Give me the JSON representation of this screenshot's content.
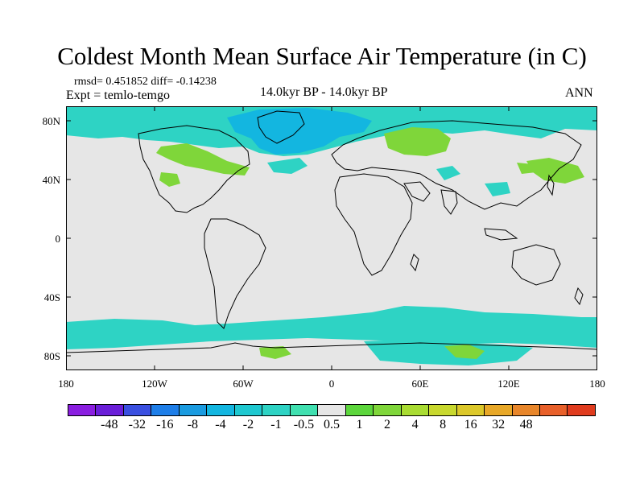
{
  "title": "Coldest Month Mean Surface Air Temperature (in C)",
  "stats": "rmsd= 0.451852 diff= -0.14238",
  "experiment": "Expt = temlo-temgo",
  "period": "14.0kyr BP - 14.0kyr BP",
  "season": "ANN",
  "colors": {
    "land_neutral": "#e6e6e6",
    "cool_1": "#2ed3c4",
    "cool_2": "#13b6e0",
    "cool_3": "#1aa0d8",
    "warm_1": "#7fd63a",
    "warm_2": "#a9dc32"
  },
  "map_data": {
    "lon_range": [
      -180,
      180
    ],
    "lat_range": [
      -90,
      90
    ],
    "lat_ticks": [
      "80N",
      "40N",
      "0",
      "40S",
      "80S"
    ],
    "lon_ticks": [
      "180",
      "120W",
      "60W",
      "0",
      "60E",
      "120E",
      "180"
    ],
    "anomaly_regions": [
      {
        "name": "arctic-band",
        "level": "-0.5 to -1",
        "color": "#2ed3c4"
      },
      {
        "name": "north-atlantic-cooling",
        "level": "-1 to -2",
        "color": "#13b6e0"
      },
      {
        "name": "siberia-warming",
        "level": "0.5 to 1",
        "color": "#7fd63a"
      },
      {
        "name": "north-america-warming",
        "level": "0.5 to 1",
        "color": "#7fd63a"
      },
      {
        "name": "southern-ocean-band",
        "level": "-0.5 to -1",
        "color": "#2ed3c4"
      },
      {
        "name": "antarctic-warming",
        "level": "0.5 to 1",
        "color": "#7fd63a"
      }
    ]
  },
  "colorbar": {
    "colors": [
      "#8a1ee0",
      "#6a1ed8",
      "#3a4fe0",
      "#1e7ee8",
      "#1a9be0",
      "#13b6e0",
      "#1ec8d0",
      "#2ed3c4",
      "#40e0b0",
      "#e6e6e6",
      "#5cd63c",
      "#7fd63a",
      "#a9dc32",
      "#c8d82e",
      "#dcc82a",
      "#e8a828",
      "#e8862a",
      "#e8602a",
      "#e03c1e"
    ],
    "labels": [
      "-48",
      "-32",
      "-16",
      "-8",
      "-4",
      "-2",
      "-1",
      "-0.5",
      "0.5",
      "1",
      "2",
      "4",
      "8",
      "16",
      "32",
      "48"
    ]
  }
}
